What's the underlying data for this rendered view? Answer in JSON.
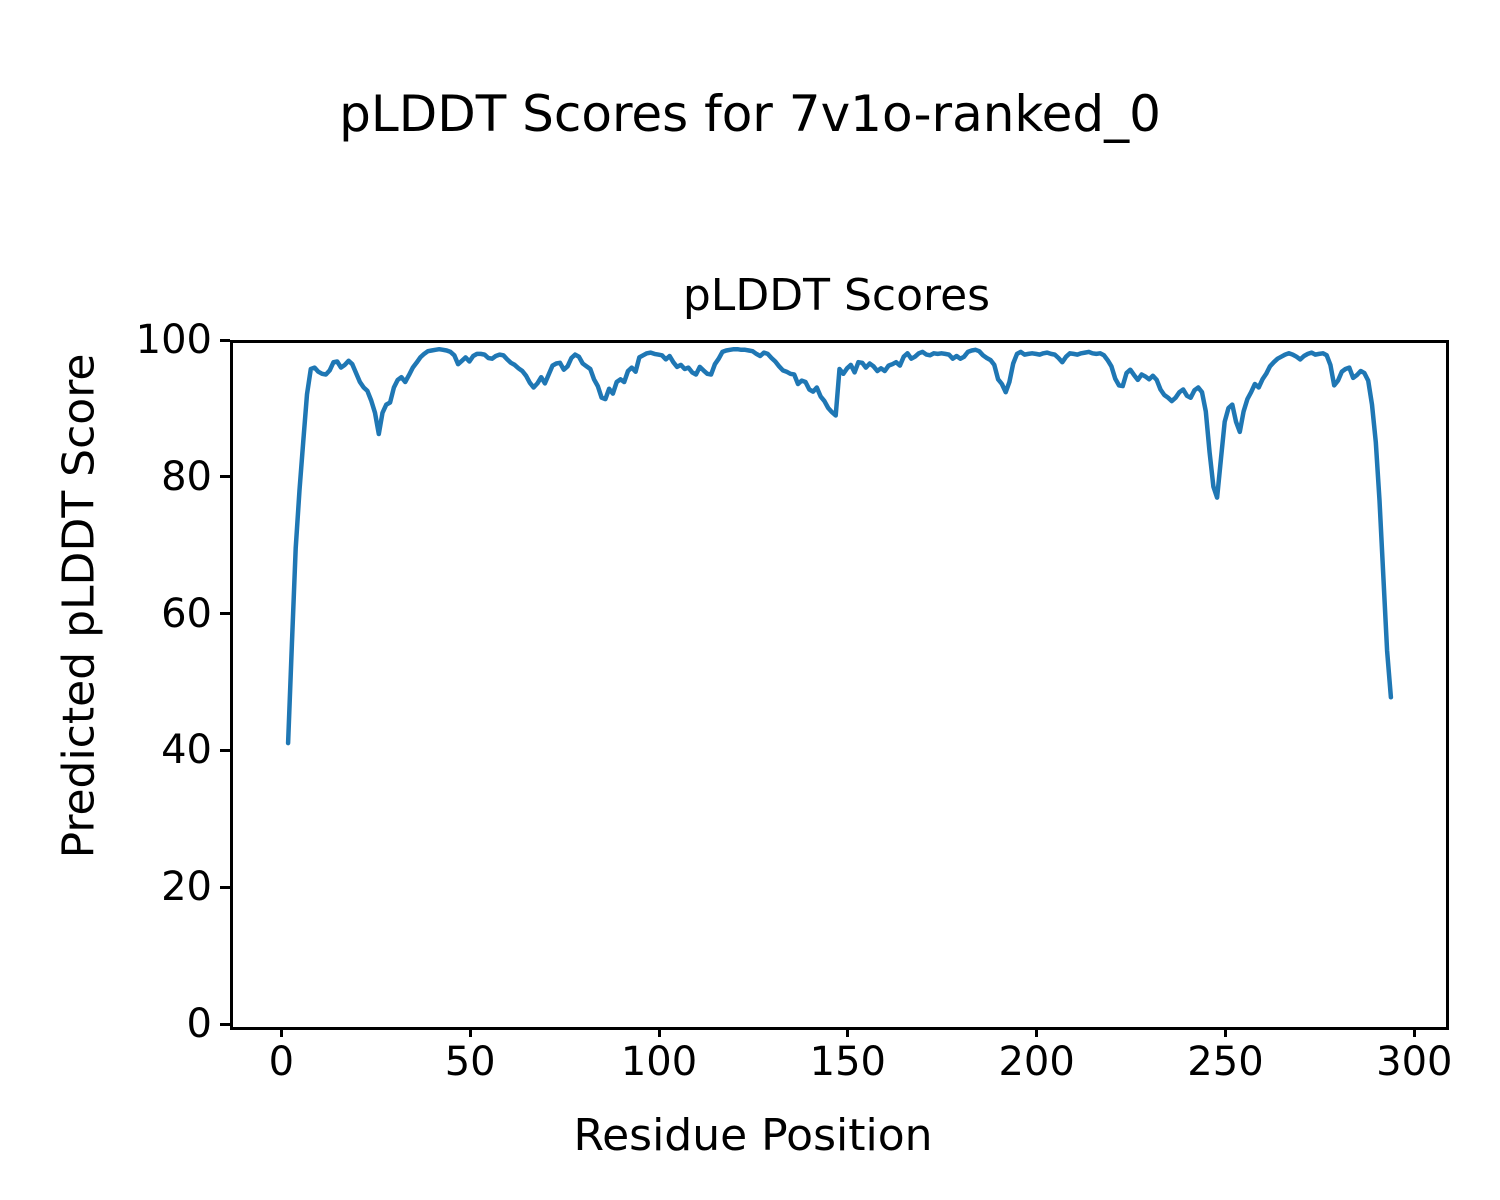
{
  "figure": {
    "suptitle": "pLDDT Scores for 7v1o-ranked_0",
    "axes_title": "pLDDT Scores",
    "xlabel": "Residue Position",
    "ylabel": "Predicted pLDDT Score"
  },
  "colors": {
    "line": "#1f77b4",
    "axes": "#000000",
    "background": "#ffffff"
  },
  "chart_data": {
    "type": "line",
    "title": "pLDDT Scores",
    "suptitle": "pLDDT Scores for 7v1o-ranked_0",
    "xlabel": "Residue Position",
    "ylabel": "Predicted pLDDT Score",
    "xlim": [
      -13.6,
      307.6
    ],
    "ylim": [
      0,
      100
    ],
    "x_ticks": [
      0,
      50,
      100,
      150,
      200,
      250,
      300
    ],
    "y_ticks": [
      0,
      20,
      40,
      60,
      80,
      100
    ],
    "grid": false,
    "legend": null,
    "x_start": 1,
    "series": [
      {
        "name": "pLDDT",
        "color": "#1f77b4",
        "values": [
          41.5,
          56.0,
          70.0,
          78.5,
          85.5,
          92.5,
          96.2,
          96.4,
          95.8,
          95.5,
          95.4,
          96.0,
          97.2,
          97.3,
          96.4,
          96.8,
          97.4,
          96.9,
          95.6,
          94.3,
          93.5,
          93.0,
          91.6,
          89.8,
          86.7,
          89.8,
          91.0,
          91.3,
          93.5,
          94.6,
          95.0,
          94.3,
          95.3,
          96.4,
          97.1,
          97.9,
          98.4,
          98.8,
          98.9,
          99.0,
          99.1,
          99.0,
          98.9,
          98.7,
          98.2,
          96.9,
          97.4,
          97.9,
          97.3,
          98.1,
          98.4,
          98.4,
          98.3,
          97.8,
          97.7,
          98.1,
          98.3,
          98.2,
          97.6,
          97.1,
          96.8,
          96.3,
          95.9,
          95.2,
          94.2,
          93.5,
          94.1,
          95.0,
          94.1,
          95.4,
          96.7,
          97.0,
          97.1,
          96.1,
          96.6,
          97.8,
          98.3,
          98.0,
          97.0,
          96.6,
          96.2,
          94.7,
          93.7,
          92.0,
          91.8,
          93.3,
          92.6,
          94.3,
          94.7,
          94.3,
          95.9,
          96.4,
          95.8,
          97.9,
          98.2,
          98.5,
          98.6,
          98.4,
          98.3,
          98.2,
          97.6,
          98.1,
          97.2,
          96.5,
          96.8,
          96.2,
          96.4,
          95.7,
          95.4,
          96.5,
          96.0,
          95.5,
          95.4,
          96.9,
          97.7,
          98.7,
          98.9,
          99.0,
          99.1,
          99.1,
          99.0,
          99.0,
          98.9,
          98.8,
          98.4,
          98.1,
          98.6,
          98.4,
          97.8,
          97.3,
          96.6,
          96.0,
          95.8,
          95.5,
          95.4,
          94.0,
          94.5,
          94.3,
          93.2,
          92.9,
          93.5,
          92.2,
          91.5,
          90.5,
          89.9,
          89.4,
          96.2,
          95.5,
          96.3,
          96.8,
          95.7,
          97.2,
          97.1,
          96.4,
          97.0,
          96.6,
          95.9,
          96.3,
          95.9,
          96.7,
          96.9,
          97.2,
          96.7,
          98.0,
          98.5,
          97.7,
          98.0,
          98.5,
          98.7,
          98.3,
          98.2,
          98.5,
          98.4,
          98.5,
          98.4,
          98.3,
          97.7,
          98.1,
          97.7,
          98.0,
          98.7,
          98.9,
          99.0,
          98.8,
          98.2,
          97.8,
          97.5,
          96.8,
          94.7,
          94.0,
          92.8,
          94.3,
          97.0,
          98.4,
          98.7,
          98.3,
          98.4,
          98.5,
          98.4,
          98.3,
          98.5,
          98.6,
          98.4,
          98.3,
          97.8,
          97.2,
          98.0,
          98.5,
          98.4,
          98.3,
          98.5,
          98.6,
          98.7,
          98.5,
          98.4,
          98.5,
          98.2,
          97.5,
          96.6,
          94.8,
          93.8,
          93.7,
          95.6,
          96.1,
          95.3,
          94.6,
          95.4,
          95.1,
          94.7,
          95.2,
          94.6,
          93.2,
          92.4,
          92.0,
          91.5,
          92.0,
          92.8,
          93.2,
          92.3,
          92.0,
          93.1,
          93.5,
          92.8,
          90.0,
          84.0,
          79.0,
          77.4,
          83.0,
          88.5,
          90.5,
          91.0,
          88.5,
          87.0,
          90.0,
          91.8,
          92.8,
          94.0,
          93.5,
          94.7,
          95.5,
          96.6,
          97.2,
          97.7,
          98.0,
          98.3,
          98.5,
          98.3,
          98.0,
          97.6,
          98.1,
          98.4,
          98.6,
          98.3,
          98.4,
          98.5,
          98.2,
          96.8,
          93.8,
          94.5,
          95.8,
          96.2,
          96.4,
          94.9,
          95.3,
          95.9,
          95.6,
          94.5,
          91.0,
          85.5,
          77.0,
          66.0,
          55.0,
          48.2
        ]
      }
    ]
  }
}
